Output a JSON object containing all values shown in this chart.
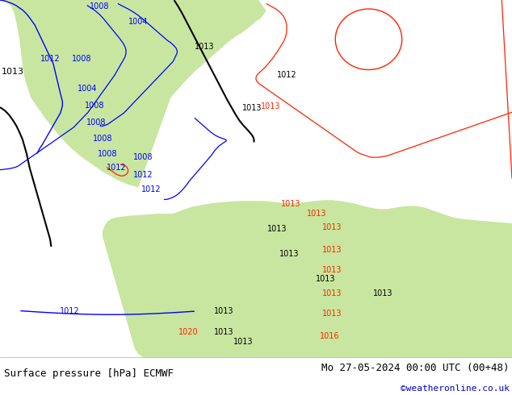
{
  "title_left": "Surface pressure [hPa] ECMWF",
  "title_right": "Mo 27-05-2024 00:00 UTC (00+48)",
  "credit": "©weatheronline.co.uk",
  "bg_color": "#d8d8d8",
  "ocean_color": "#d4d4d4",
  "land_color": "#c8e6a0",
  "figsize": [
    6.34,
    4.9
  ],
  "dpi": 100,
  "bottom_bar_color": "#ffffff",
  "title_fontsize": 9.0,
  "credit_color": "#0000cc",
  "credit_fontsize": 8,
  "blue": "#0000ff",
  "black": "#000000",
  "red": "#ff2200",
  "label_fontsize": 7
}
